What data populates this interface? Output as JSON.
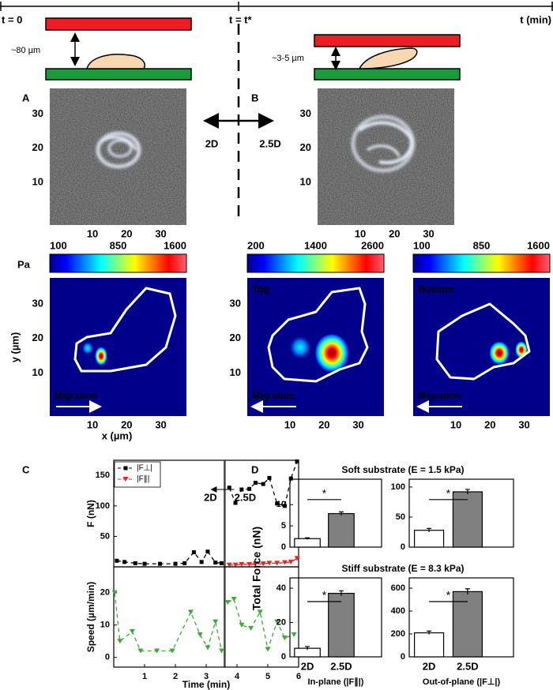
{
  "timeline": {
    "start": "t = 0",
    "switch": "t = t*",
    "end": "t (min)",
    "gap_2d": "~80 µm",
    "gap_25d": "~3-5 µm",
    "left": "2D",
    "right": "2.5D"
  },
  "panel_labels": {
    "A": "A",
    "B": "B",
    "C": "C",
    "D": "D"
  },
  "micrographs": [
    {
      "xlim": [
        -2.5,
        37.5
      ],
      "ylim": [
        -2.5,
        37.5
      ],
      "xticks": [
        10,
        20,
        30
      ],
      "yticks": [
        10,
        20,
        30
      ]
    },
    {
      "xlim": [
        -2.5,
        37.5
      ],
      "ylim": [
        -2.5,
        37.5
      ],
      "xticks": [
        10,
        20,
        30
      ],
      "yticks": [
        10,
        20,
        30
      ]
    }
  ],
  "colorbar_unit": "Pa",
  "colorbars": [
    {
      "ticks": [
        100,
        850,
        1600
      ]
    },
    {
      "ticks": [
        200,
        1400,
        2600
      ]
    },
    {
      "ticks": [
        100,
        850,
        1600
      ]
    }
  ],
  "maps": [
    {
      "xlim": [
        -2.5,
        37.5
      ],
      "ylim": [
        -2.5,
        37.5
      ],
      "xticks": [
        10,
        20,
        30
      ],
      "yticks": [
        10,
        20,
        30
      ],
      "xlabel": "x (µm)",
      "ylabel": "y (µm)",
      "arrow_label": "Migration"
    },
    {
      "label": "Top",
      "xlim": [
        -2.5,
        37.5
      ],
      "ylim": [
        -2.5,
        37.5
      ],
      "xticks": [
        10,
        20,
        30
      ],
      "yticks": [
        10,
        20,
        30
      ],
      "arrow_label": "Migration"
    },
    {
      "label": "Bottom",
      "xlim": [
        -2.5,
        37.5
      ],
      "ylim": [
        -2.5,
        37.5
      ],
      "xticks": [
        10,
        20,
        30
      ],
      "arrow_label": "Migration"
    }
  ],
  "chart_data": [
    {
      "type": "line",
      "ylabel": "F (nN)",
      "xlim": [
        0,
        6
      ],
      "ylim": [
        0,
        175
      ],
      "yticks": [
        50,
        100,
        150
      ],
      "divider": 3.6,
      "annotations": [
        "2D",
        "2.5D"
      ],
      "series": [
        {
          "name": "|F⊥|",
          "color": "#000000",
          "marker": "square",
          "x": [
            0.1,
            0.35,
            0.7,
            1.0,
            1.5,
            2.0,
            2.3,
            2.6,
            2.85,
            3.05,
            3.3,
            3.5,
            3.6,
            3.75,
            3.95,
            4.15,
            4.4,
            4.6,
            4.85,
            5.05,
            5.3,
            5.55,
            5.75,
            5.95
          ],
          "values": [
            10,
            8,
            6,
            5,
            5,
            5,
            6,
            24,
            8,
            25,
            7,
            6,
            null,
            130,
            105,
            127,
            128,
            138,
            136,
            146,
            104,
            100,
            145,
            173
          ]
        },
        {
          "name": "|F∥|",
          "color": "#e8251f",
          "marker": "triangle",
          "x": [
            3.75,
            3.95,
            4.15,
            4.4,
            4.6,
            4.85,
            5.05,
            5.3,
            5.55,
            5.75,
            5.95
          ],
          "values": [
            3,
            3,
            4,
            4,
            5,
            5,
            6,
            6,
            7,
            8,
            14
          ]
        }
      ]
    },
    {
      "type": "line",
      "ylabel": "Speed (µm/min)",
      "xlabel": "Time (min)",
      "xlim": [
        0,
        6
      ],
      "ylim": [
        -3,
        28
      ],
      "yticks": [
        0,
        10,
        20
      ],
      "xticks": [
        1,
        2,
        3,
        4,
        5,
        6
      ],
      "color": "#3aa935",
      "marker": "triangle",
      "x": [
        0.03,
        0.2,
        0.6,
        0.87,
        1.4,
        1.9,
        2.5,
        2.8,
        3.05,
        3.3,
        3.5,
        3.6,
        3.7,
        3.9,
        4.15,
        4.45,
        4.75,
        5.0,
        5.3,
        5.55,
        5.85
      ],
      "values": [
        20,
        5,
        8,
        2,
        2,
        2,
        14,
        7,
        3,
        11,
        2,
        null,
        17,
        18,
        10,
        9,
        14,
        2.5,
        11,
        6,
        7
      ]
    },
    {
      "type": "bar",
      "title": "Soft substrate (E = 1.5 kPa)",
      "ylabel": "Total Force (nN)",
      "categories": [
        null,
        null
      ],
      "values": [
        2,
        7.9
      ],
      "errors": [
        0.2,
        0.4
      ],
      "colors": [
        "#ffffff",
        "#808080"
      ],
      "ylim": [
        0,
        16
      ],
      "yticks": [
        0,
        5,
        10
      ],
      "significance": "*"
    },
    {
      "type": "bar",
      "categories": [
        null,
        null
      ],
      "values": [
        28,
        92
      ],
      "errors": [
        3,
        4
      ],
      "colors": [
        "#ffffff",
        "#808080"
      ],
      "ylim": [
        0,
        113
      ],
      "yticks": [
        0,
        50,
        100
      ],
      "significance": "*"
    },
    {
      "type": "bar",
      "title": "Stiff substrate (E = 8.3 kPa)",
      "xlabel": "In-plane (|F∥|)",
      "categories": [
        "2D",
        "2.5D"
      ],
      "values": [
        5,
        37
      ],
      "errors": [
        1,
        1.5
      ],
      "colors": [
        "#ffffff",
        "#808080"
      ],
      "ylim": [
        0,
        46
      ],
      "yticks": [
        0,
        20,
        40
      ],
      "significance": "*"
    },
    {
      "type": "bar",
      "xlabel": "Out-of-plane (|F⊥|)",
      "categories": [
        "2D",
        "2.5D"
      ],
      "values": [
        210,
        570
      ],
      "errors": [
        15,
        25
      ],
      "colors": [
        "#ffffff",
        "#808080"
      ],
      "ylim": [
        0,
        690
      ],
      "yticks": [
        0,
        200,
        400,
        600
      ],
      "significance": "*"
    }
  ]
}
